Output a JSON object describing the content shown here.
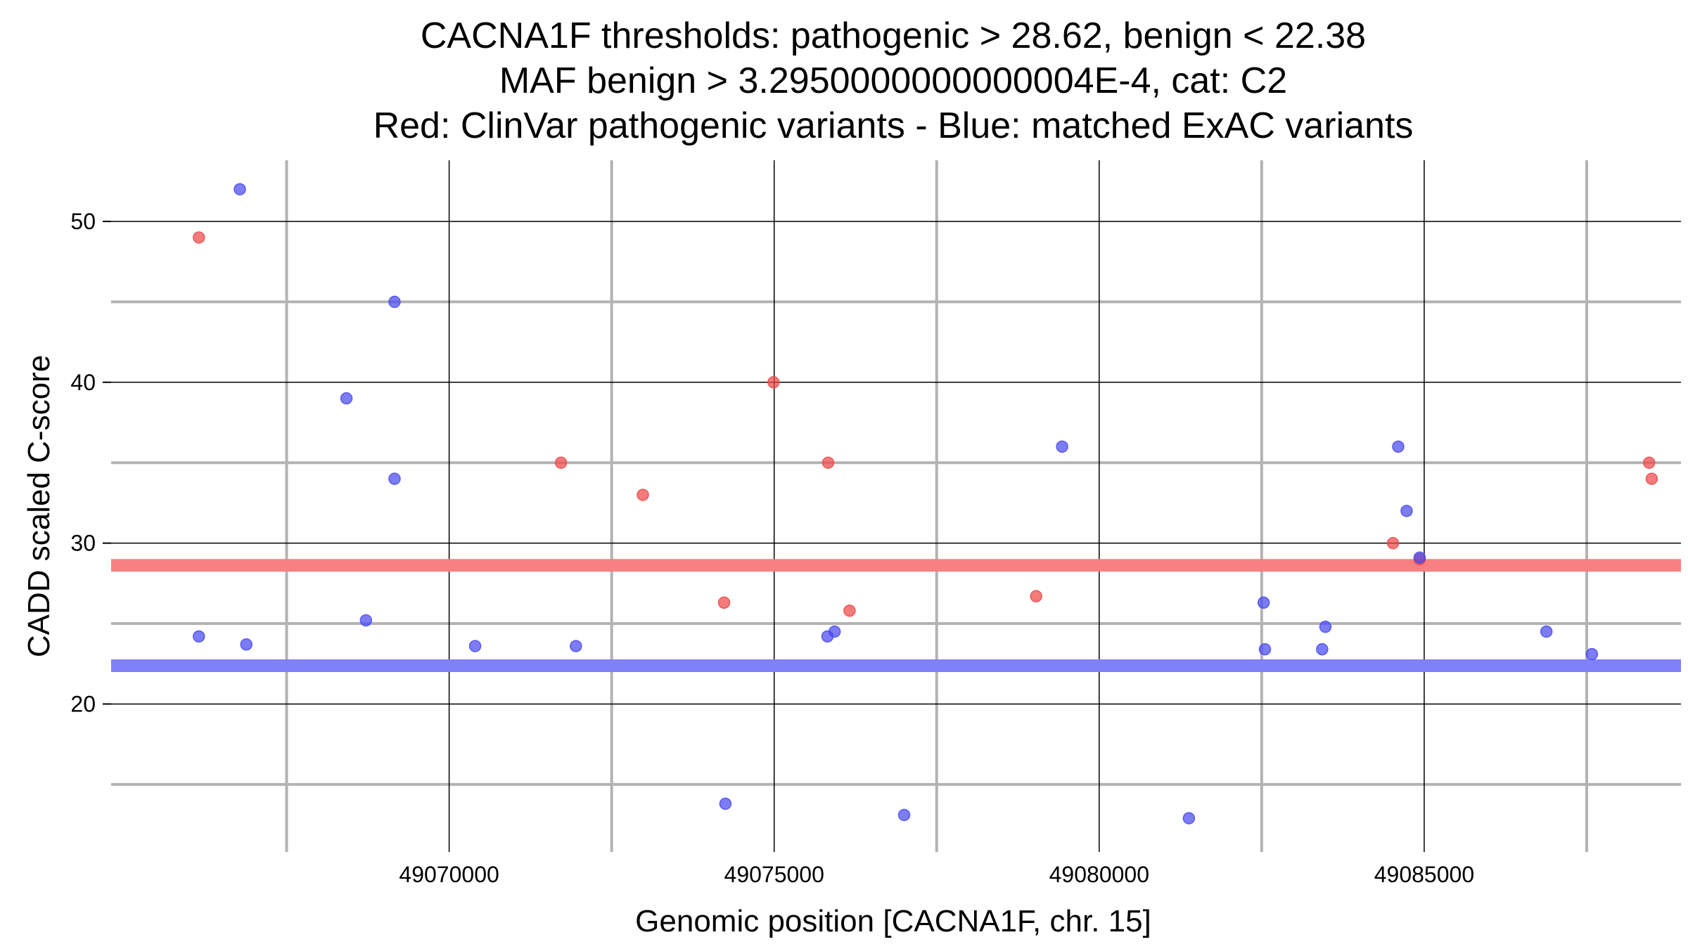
{
  "chart_data": {
    "type": "scatter",
    "title": [
      "CACNA1F thresholds: pathogenic > 28.62, benign < 22.38",
      "MAF benign > 3.2950000000000004E-4, cat: C2",
      "Red: ClinVar pathogenic variants - Blue: matched ExAC variants"
    ],
    "xlabel": "Genomic position [CACNA1F, chr. 15]",
    "ylabel": "CADD scaled C-score",
    "xlim": [
      49064800,
      49088950
    ],
    "ylim": [
      10.8,
      53.8
    ],
    "x_ticks": [
      49070000,
      49075000,
      49080000,
      49085000
    ],
    "x_tick_labels": [
      "49070000",
      "49075000",
      "49080000",
      "49085000"
    ],
    "x_minor_grid": [
      49067500,
      49072500,
      49077500,
      49082500,
      49087500
    ],
    "y_ticks": [
      20,
      30,
      40,
      50
    ],
    "y_tick_labels": [
      "20",
      "30",
      "40",
      "50"
    ],
    "y_minor_grid": [
      15,
      25,
      35,
      45
    ],
    "thresholds": [
      {
        "name": "pathogenic",
        "value": 28.62,
        "color": "#f88080"
      },
      {
        "name": "benign",
        "value": 22.38,
        "color": "#8080f8"
      }
    ],
    "series": [
      {
        "name": "ClinVar pathogenic variants",
        "color": "#f04848",
        "points": [
          {
            "x": 49066150,
            "y": 49.0
          },
          {
            "x": 49071720,
            "y": 35.0
          },
          {
            "x": 49072980,
            "y": 33.0
          },
          {
            "x": 49074230,
            "y": 26.3
          },
          {
            "x": 49074990,
            "y": 40.0
          },
          {
            "x": 49075830,
            "y": 35.0
          },
          {
            "x": 49076160,
            "y": 25.8
          },
          {
            "x": 49079030,
            "y": 26.7
          },
          {
            "x": 49084520,
            "y": 30.0
          },
          {
            "x": 49084930,
            "y": 29.0
          },
          {
            "x": 49088460,
            "y": 35.0
          },
          {
            "x": 49088500,
            "y": 34.0
          }
        ]
      },
      {
        "name": "matched ExAC variants",
        "color": "#4a4af0",
        "points": [
          {
            "x": 49066150,
            "y": 24.2
          },
          {
            "x": 49066780,
            "y": 52.0
          },
          {
            "x": 49066880,
            "y": 23.7
          },
          {
            "x": 49068420,
            "y": 39.0
          },
          {
            "x": 49068720,
            "y": 25.2
          },
          {
            "x": 49069160,
            "y": 45.0
          },
          {
            "x": 49069160,
            "y": 34.0
          },
          {
            "x": 49070400,
            "y": 23.6
          },
          {
            "x": 49071950,
            "y": 23.6
          },
          {
            "x": 49074250,
            "y": 13.8
          },
          {
            "x": 49075820,
            "y": 24.2
          },
          {
            "x": 49075930,
            "y": 24.5
          },
          {
            "x": 49077000,
            "y": 13.1
          },
          {
            "x": 49079430,
            "y": 36.0
          },
          {
            "x": 49081380,
            "y": 12.9
          },
          {
            "x": 49082530,
            "y": 26.3
          },
          {
            "x": 49082550,
            "y": 23.4
          },
          {
            "x": 49083430,
            "y": 23.4
          },
          {
            "x": 49083480,
            "y": 24.8
          },
          {
            "x": 49084600,
            "y": 36.0
          },
          {
            "x": 49084730,
            "y": 32.0
          },
          {
            "x": 49084930,
            "y": 29.1
          },
          {
            "x": 49086880,
            "y": 24.5
          },
          {
            "x": 49087580,
            "y": 23.1
          }
        ]
      }
    ]
  }
}
